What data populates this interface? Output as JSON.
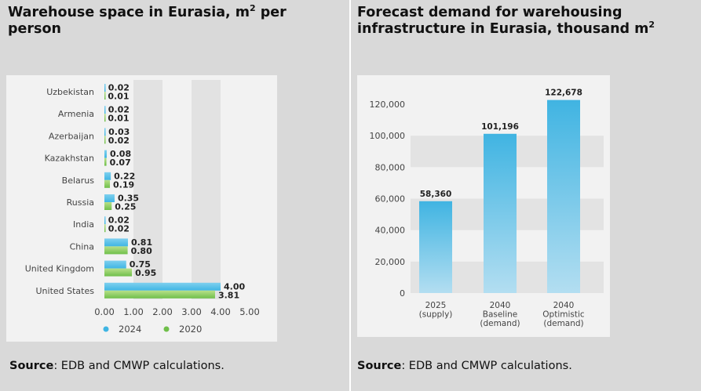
{
  "left": {
    "title_main": "Warehouse space in Eurasia, m",
    "title_sup": "2",
    "title_end": " per person",
    "source_label": "Source",
    "source_text": ": EDB and CMWP calculations."
  },
  "right": {
    "title_main": "Forecast demand for warehousing infrastructure in Eurasia, thousand m",
    "title_sup": "2",
    "source_label": "Source",
    "source_text": ": EDB and CMWP calculations."
  },
  "colors": {
    "blue_top": "#7fd0ef",
    "blue_bottom": "#3fb5e3",
    "green_top": "#b8e08a",
    "green_bottom": "#6fbf4a",
    "col_top": "#40b4e2",
    "col_bottom": "#b3def1"
  },
  "chart_data": [
    {
      "type": "bar",
      "orientation": "horizontal",
      "title": "Warehouse space in Eurasia, m2 per person",
      "categories": [
        "Uzbekistan",
        "Armenia",
        "Azerbaijan",
        "Kazakhstan",
        "Belarus",
        "Russia",
        "India",
        "China",
        "United Kingdom",
        "United States"
      ],
      "series": [
        {
          "name": "2024",
          "values": [
            0.02,
            0.02,
            0.03,
            0.08,
            0.22,
            0.35,
            0.02,
            0.81,
            0.75,
            4.0
          ]
        },
        {
          "name": "2020",
          "values": [
            0.01,
            0.01,
            0.02,
            0.07,
            0.19,
            0.25,
            0.02,
            0.8,
            0.95,
            3.81
          ]
        }
      ],
      "value_labels": {
        "2024": [
          "0.02",
          "0.02",
          "0.03",
          "0.08",
          "0.22",
          "0.35",
          "0.02",
          "0.81",
          "0.75",
          "4.00"
        ],
        "2020": [
          "0.01",
          "0.01",
          "0.02",
          "0.07",
          "0.19",
          "0.25",
          "0.02",
          "0.80",
          "0.95",
          "3.81"
        ]
      },
      "xlim": [
        0,
        5
      ],
      "xticks": [
        "0.00",
        "1.00",
        "2.00",
        "3.00",
        "4.00",
        "5.00"
      ],
      "legend": [
        "2024",
        "2020"
      ],
      "legend_position": "bottom"
    },
    {
      "type": "bar",
      "orientation": "vertical",
      "title": "Forecast demand for warehousing infrastructure in Eurasia, thousand m2",
      "categories": [
        [
          "2025",
          "(supply)"
        ],
        [
          "2040",
          "Baseline",
          "(demand)"
        ],
        [
          "2040",
          "Optimistic",
          "(demand)"
        ]
      ],
      "values": [
        58360,
        101196,
        122678
      ],
      "value_labels": [
        "58,360",
        "101,196",
        "122,678"
      ],
      "ylim": [
        0,
        120000
      ],
      "yticks": [
        "0",
        "20,000",
        "40,000",
        "60,000",
        "80,000",
        "100,000",
        "120,000"
      ]
    }
  ]
}
